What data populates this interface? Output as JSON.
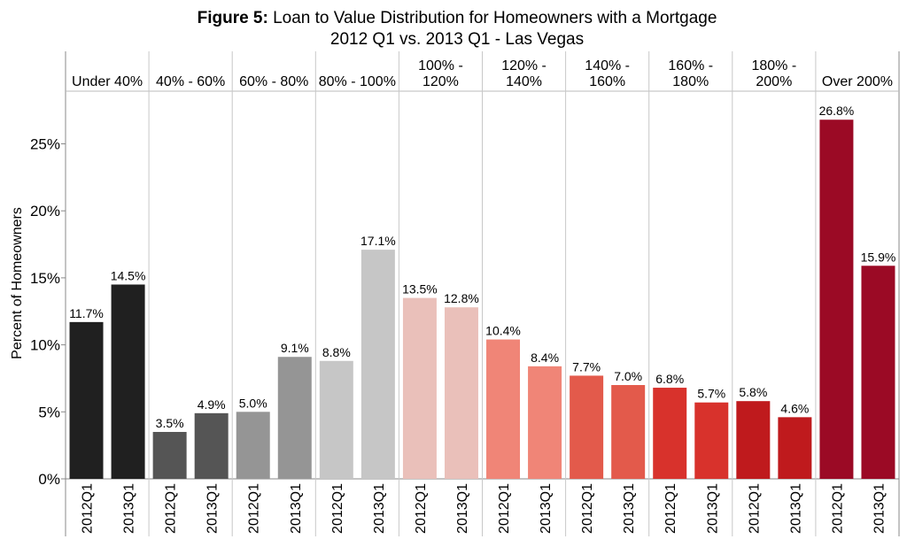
{
  "chart_data": {
    "type": "bar",
    "title_bold": "Figure 5:",
    "title_rest": " Loan to Value Distribution for Homeowners with a Mortgage",
    "subtitle": "2012 Q1 vs. 2013 Q1 - Las Vegas",
    "ylabel": "Percent of Homeowners",
    "ylim": [
      0,
      29
    ],
    "yticks": [
      "0%",
      "5%",
      "10%",
      "15%",
      "20%",
      "25%"
    ],
    "ytick_values": [
      0,
      5,
      10,
      15,
      20,
      25
    ],
    "series_labels": [
      "2012Q1",
      "2013Q1"
    ],
    "groups": [
      {
        "label": [
          "Under 40%"
        ],
        "values": [
          11.7,
          14.5
        ],
        "value_labels": [
          "11.7%",
          "14.5%"
        ],
        "color": "#202020"
      },
      {
        "label": [
          "40% - 60%"
        ],
        "values": [
          3.5,
          4.9
        ],
        "value_labels": [
          "3.5%",
          "4.9%"
        ],
        "color": "#555555"
      },
      {
        "label": [
          "60% - 80%"
        ],
        "values": [
          5.0,
          9.1
        ],
        "value_labels": [
          "5.0%",
          "9.1%"
        ],
        "color": "#959595"
      },
      {
        "label": [
          "80% - 100%"
        ],
        "values": [
          8.8,
          17.1
        ],
        "value_labels": [
          "8.8%",
          "17.1%"
        ],
        "color": "#c6c6c6"
      },
      {
        "label": [
          "100% -",
          "120%"
        ],
        "values": [
          13.5,
          12.8
        ],
        "value_labels": [
          "13.5%",
          "12.8%"
        ],
        "color": "#eac0ba"
      },
      {
        "label": [
          "120% -",
          "140%"
        ],
        "values": [
          10.4,
          8.4
        ],
        "value_labels": [
          "10.4%",
          "8.4%"
        ],
        "color": "#f08577"
      },
      {
        "label": [
          "140% -",
          "160%"
        ],
        "values": [
          7.7,
          7.0
        ],
        "value_labels": [
          "7.7%",
          "7.0%"
        ],
        "color": "#e35a4b"
      },
      {
        "label": [
          "160% -",
          "180%"
        ],
        "values": [
          6.8,
          5.7
        ],
        "value_labels": [
          "6.8%",
          "5.7%"
        ],
        "color": "#d8322c"
      },
      {
        "label": [
          "180% -",
          "200%"
        ],
        "values": [
          5.8,
          4.6
        ],
        "value_labels": [
          "5.8%",
          "4.6%"
        ],
        "color": "#bf1a1d"
      },
      {
        "label": [
          "Over 200%"
        ],
        "values": [
          26.8,
          15.9
        ],
        "value_labels": [
          "26.8%",
          "15.9%"
        ],
        "color": "#9b0a25"
      }
    ],
    "grid": false,
    "legend": "none"
  }
}
